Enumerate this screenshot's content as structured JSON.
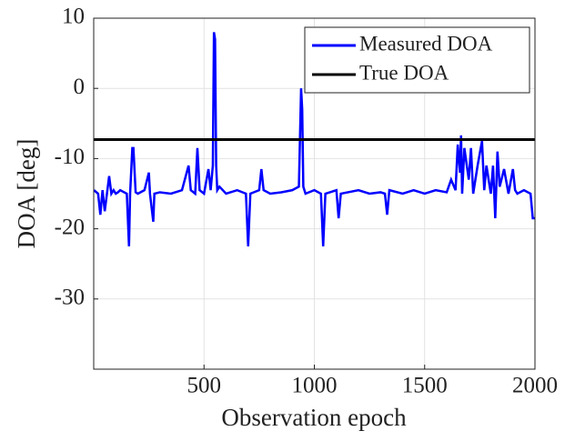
{
  "chart_data": {
    "type": "line",
    "xlabel": "Observation epoch",
    "ylabel": "DOA [deg]",
    "xlim": [
      0,
      2000
    ],
    "xticks": [
      500,
      1000,
      1500,
      2000
    ],
    "ylim": [
      -40,
      10
    ],
    "yticks": [
      10,
      0,
      -10,
      -20,
      -30
    ],
    "grid": true,
    "legend": "upper right",
    "series": [
      {
        "name": "Measured DOA",
        "color": "#0000ff",
        "x": [
          1,
          20,
          30,
          40,
          50,
          60,
          70,
          80,
          90,
          100,
          110,
          120,
          150,
          160,
          165,
          175,
          180,
          190,
          200,
          230,
          250,
          255,
          270,
          275,
          300,
          350,
          400,
          430,
          440,
          460,
          470,
          480,
          500,
          520,
          530,
          540,
          545,
          550,
          555,
          560,
          570,
          600,
          650,
          690,
          700,
          710,
          750,
          760,
          770,
          800,
          850,
          900,
          930,
          940,
          945,
          950,
          955,
          960,
          1000,
          1030,
          1040,
          1050,
          1100,
          1110,
          1120,
          1200,
          1250,
          1300,
          1320,
          1330,
          1340,
          1400,
          1450,
          1500,
          1550,
          1600,
          1620,
          1640,
          1650,
          1660,
          1665,
          1670,
          1680,
          1700,
          1710,
          1720,
          1740,
          1760,
          1770,
          1780,
          1800,
          1810,
          1820,
          1830,
          1840,
          1860,
          1880,
          1900,
          1910,
          1920,
          1950,
          1980,
          1990,
          2000
        ],
        "values": [
          -14.5,
          -15,
          -18,
          -14.5,
          -17.5,
          -15,
          -12.5,
          -15,
          -14.5,
          -15,
          -14.8,
          -14.5,
          -15,
          -22.5,
          -15,
          -8.5,
          -8.5,
          -14.8,
          -15,
          -14.5,
          -12,
          -15,
          -19,
          -15,
          -14.8,
          -15,
          -14.5,
          -11,
          -14.5,
          -15,
          -8.5,
          -14.5,
          -15,
          -11.5,
          -14.5,
          -11,
          8,
          7,
          -11,
          -14.5,
          -14,
          -15,
          -14.5,
          -15,
          -22.5,
          -15,
          -14.5,
          -11.5,
          -14.5,
          -15,
          -14.8,
          -14.5,
          -14,
          0,
          -3,
          -14,
          -14.5,
          -15,
          -14.5,
          -15,
          -22.5,
          -15,
          -14.5,
          -18.5,
          -15,
          -14.5,
          -15,
          -14.8,
          -15,
          -18,
          -14.5,
          -15,
          -14.5,
          -15,
          -14.5,
          -14.8,
          -13,
          -14.5,
          -8,
          -12,
          -6.7,
          -15,
          -8.5,
          -13,
          -8.5,
          -15,
          -11,
          -7.5,
          -14.5,
          -11,
          -15,
          -11,
          -18.5,
          -9,
          -14,
          -11.5,
          -15,
          -11.5,
          -14.5,
          -15,
          -14.5,
          -15,
          -18.5,
          -18.5
        ]
      },
      {
        "name": "True DOA",
        "color": "#000000",
        "x": [
          1,
          2000
        ],
        "values": [
          -7.3,
          -7.3
        ]
      }
    ]
  }
}
